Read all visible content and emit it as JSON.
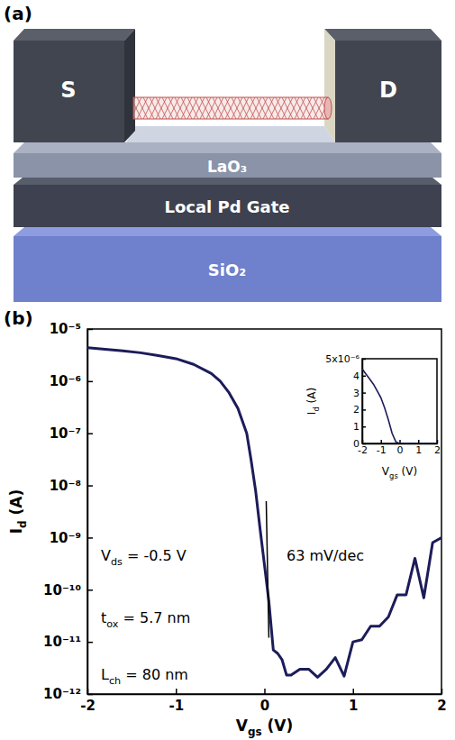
{
  "diagram": {
    "panel_label": "(a)",
    "source": "S",
    "drain": "D",
    "layers": [
      "LaO₃",
      "Local Pd Gate",
      "SiO₂"
    ]
  },
  "chart_data": [
    {
      "type": "line",
      "panel_label": "(b)",
      "log": "y",
      "grid": false,
      "color": "#1c1c5a",
      "x_label": [
        "V",
        {
          "sub": "gs"
        },
        " (V)"
      ],
      "y_label": [
        "I",
        {
          "sub": "d"
        },
        " (A)"
      ],
      "x": [
        -2,
        -1.8,
        -1.6,
        -1.4,
        -1.2,
        -1,
        -0.8,
        -0.6,
        -0.5,
        -0.4,
        -0.3,
        -0.2,
        -0.15,
        -0.1,
        -0.05,
        0,
        0.05,
        0.1,
        0.15,
        0.2,
        0.25,
        0.3,
        0.4,
        0.5,
        0.6,
        0.7,
        0.8,
        0.9,
        1,
        1.1,
        1.2,
        1.3,
        1.4,
        1.5,
        1.6,
        1.7,
        1.8,
        1.9,
        2
      ],
      "values": [
        4.4e-06,
        4.1e-06,
        3.8e-06,
        3.5e-06,
        3.1e-06,
        2.7e-06,
        2.1e-06,
        1.4e-06,
        1e-06,
        6e-07,
        3e-07,
        1e-07,
        3e-08,
        8e-09,
        1.5e-09,
        3e-10,
        6e-11,
        7e-12,
        6e-12,
        4.5e-12,
        2.3e-12,
        2.3e-12,
        3e-12,
        3e-12,
        2.1e-12,
        3e-12,
        5e-12,
        2.2e-12,
        1e-11,
        1.1e-11,
        2e-11,
        2e-11,
        3e-11,
        8e-11,
        8e-11,
        4e-10,
        7e-11,
        8e-10,
        1e-09
      ],
      "xlim": [
        -2,
        2
      ],
      "xticks": [
        -2,
        -1,
        0,
        1,
        2
      ],
      "ylim": [
        1e-12,
        1e-05
      ],
      "yticks": [
        {
          "value": 1e-12,
          "label": "10⁻¹²"
        },
        {
          "value": 1e-11,
          "label": "10⁻¹¹"
        },
        {
          "value": 1e-10,
          "label": "10⁻¹⁰"
        },
        {
          "value": 1e-09,
          "label": "10⁻⁹"
        },
        {
          "value": 1e-08,
          "label": "10⁻⁸"
        },
        {
          "value": 1e-07,
          "label": "10⁻⁷"
        },
        {
          "value": 1e-06,
          "label": "10⁻⁶"
        },
        {
          "value": 1e-05,
          "label": "10⁻⁵"
        }
      ],
      "slope_line": {
        "x": [
          0.02,
          0.05
        ],
        "y": [
          5e-09,
          1.2e-11
        ]
      },
      "annotations": [
        {
          "text": [
            "V",
            {
              "sub": "ds"
            },
            " = -0.5 V"
          ]
        },
        {
          "text": [
            "t",
            {
              "sub": "ox"
            },
            " = 5.7 nm"
          ]
        },
        {
          "text": [
            "L",
            {
              "sub": "ch"
            },
            " = 80 nm"
          ]
        },
        {
          "text": [
            "63 mV/dec"
          ]
        }
      ]
    },
    {
      "type": "line",
      "grid": false,
      "color": "#1c1c5a",
      "x_label": [
        "V",
        {
          "sub": "gs"
        },
        " (V)"
      ],
      "y_label": [
        "I",
        {
          "sub": "d"
        },
        " (A)"
      ],
      "x": [
        -2,
        -1.8,
        -1.6,
        -1.4,
        -1.2,
        -1,
        -0.8,
        -0.6,
        -0.4,
        -0.2,
        0,
        0.2,
        0.4,
        0.6,
        0.8,
        1,
        1.2,
        1.4,
        1.6,
        1.8,
        2
      ],
      "values": [
        4.4e-06,
        4.1e-06,
        3.8e-06,
        3.5e-06,
        3.1e-06,
        2.7e-06,
        2.1e-06,
        1.4e-06,
        6e-07,
        1e-07,
        0,
        0,
        0,
        0,
        0,
        0,
        0,
        0,
        0,
        0,
        0
      ],
      "xlim": [
        -2,
        2
      ],
      "xticks": [
        -2,
        -1,
        0,
        1,
        2
      ],
      "ylim": [
        0,
        5e-06
      ],
      "yticks": [
        0,
        {
          "value": 1e-06,
          "label": "1"
        },
        {
          "value": 2e-06,
          "label": "2"
        },
        {
          "value": 3e-06,
          "label": "3"
        },
        {
          "value": 4e-06,
          "label": "4"
        },
        {
          "value": 5e-06,
          "label": "5x10⁻⁶"
        }
      ]
    }
  ]
}
